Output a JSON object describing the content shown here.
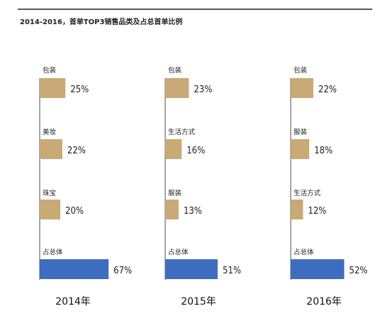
{
  "title": "2014-2016，首单TOP3销售品类及占总首单比例",
  "colors": {
    "category_bar": "#C9A976",
    "total_bar": "#3E6DC0",
    "axis": "#6a6a6a"
  },
  "chart_data": [
    {
      "type": "bar",
      "label": "2014年",
      "categories": [
        "包装",
        "美妆",
        "珠宝",
        "占总体"
      ],
      "values": [
        25,
        22,
        20,
        67
      ],
      "value_labels": [
        "25%",
        "22%",
        "20%",
        "67%"
      ],
      "unit": "%"
    },
    {
      "type": "bar",
      "label": "2015年",
      "categories": [
        "包装",
        "生活方式",
        "服装",
        "占总体"
      ],
      "values": [
        23,
        16,
        13,
        51
      ],
      "value_labels": [
        "23%",
        "16%",
        "13%",
        "51%"
      ],
      "unit": "%"
    },
    {
      "type": "bar",
      "label": "2016年",
      "categories": [
        "包装",
        "服装",
        "生活方式",
        "占总体"
      ],
      "values": [
        22,
        18,
        12,
        52
      ],
      "value_labels": [
        "22%",
        "18%",
        "12%",
        "52%"
      ],
      "unit": "%"
    }
  ]
}
